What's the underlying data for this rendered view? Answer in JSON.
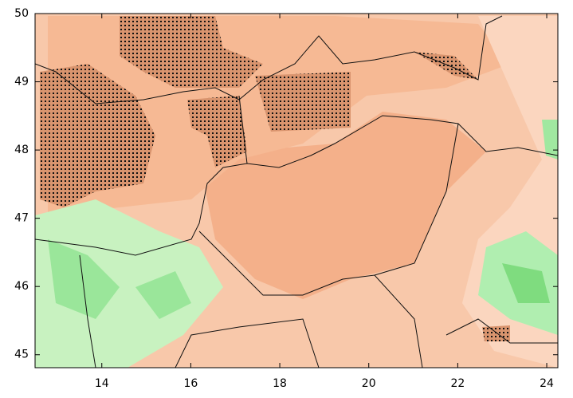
{
  "map": {
    "xlim": [
      12.5,
      24.25
    ],
    "ylim": [
      44.81,
      50
    ],
    "xticks": [
      14,
      16,
      18,
      20,
      22,
      24
    ],
    "yticks": [
      45,
      46,
      47,
      48,
      49,
      50
    ]
  }
}
